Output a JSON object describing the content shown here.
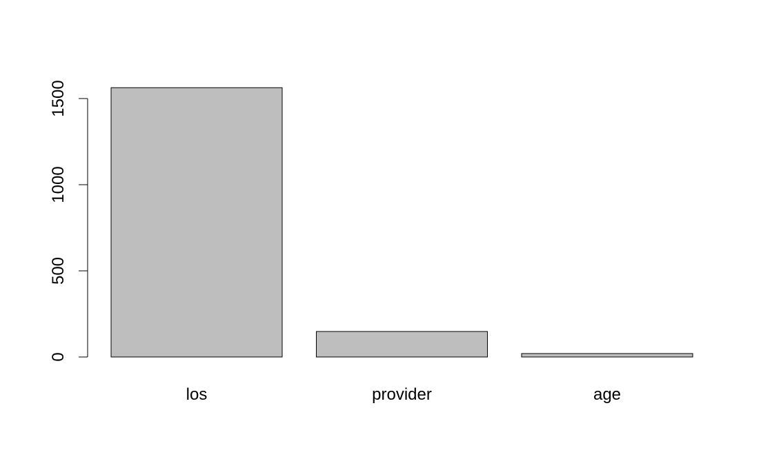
{
  "chart_data": {
    "type": "bar",
    "categories": [
      "los",
      "provider",
      "age"
    ],
    "values": [
      1563,
      148,
      20
    ],
    "ylim": [
      0,
      1563
    ],
    "yticks": [
      0,
      500,
      1000,
      1500
    ],
    "ytick_labels": [
      "0",
      "500",
      "1000",
      "1500"
    ],
    "grid": false,
    "title": "",
    "xlabel": "",
    "ylabel": "",
    "colors": {
      "bar_fill": "#bebebe",
      "bar_stroke": "#000000",
      "axis": "#000000"
    }
  }
}
